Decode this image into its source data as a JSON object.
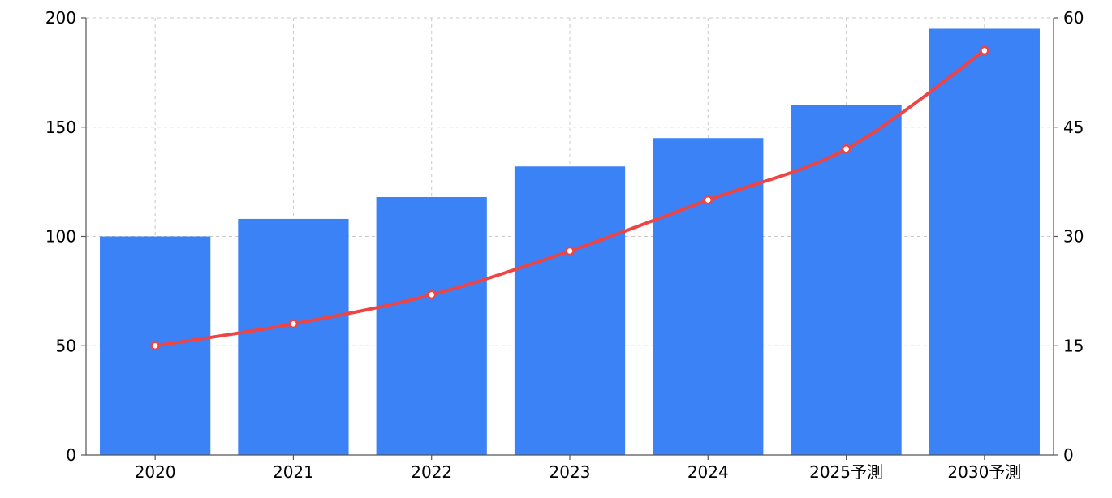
{
  "chart_data": {
    "type": "bar",
    "title": "",
    "xlabel": "",
    "ylabel": "",
    "y2label": "",
    "categories": [
      "2020",
      "2021",
      "2022",
      "2023",
      "2024",
      "2025予測",
      "2030予測"
    ],
    "series": [
      {
        "type": "bar",
        "axis": "left",
        "color": "#3b82f6",
        "values": [
          100,
          108,
          118,
          132,
          145,
          160,
          195
        ]
      },
      {
        "type": "line",
        "axis": "right",
        "color": "#ef4444",
        "marker_fill": "#ffffff",
        "values": [
          15,
          18,
          22,
          28,
          35,
          42,
          55.5
        ]
      }
    ],
    "ylim": [
      0,
      200
    ],
    "yticks": [
      "0",
      "50",
      "100",
      "150",
      "200"
    ],
    "y2lim": [
      0,
      60
    ],
    "y2ticks": [
      "0",
      "15",
      "30",
      "45",
      "60"
    ],
    "grid": true,
    "grid_style": "dashed",
    "legend": "none",
    "colors": {
      "grid": "#c8c8c8",
      "axis": "#555555",
      "text": "#000000"
    }
  }
}
